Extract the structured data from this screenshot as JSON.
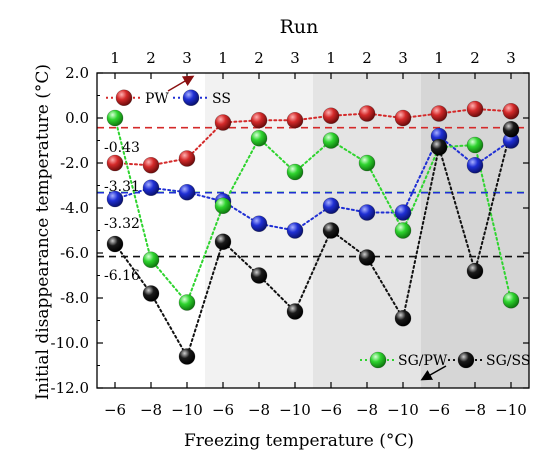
{
  "chart_data": {
    "type": "scatter",
    "title": "",
    "top_axis_label": "Run",
    "xlabel": "Freezing temperature (°C)",
    "ylabel": "Initial disappearance temperature (°C)",
    "ylim": [
      -12,
      2
    ],
    "yticks": [
      "2.0",
      "0.0",
      "-2.0",
      "-4.0",
      "-6.0",
      "-8.0",
      "-10.0",
      "-12.0"
    ],
    "yticks_values": [
      2,
      0,
      -2,
      -4,
      -6,
      -8,
      -10,
      -12
    ],
    "x_tick_labels": [
      "−6",
      "−8",
      "−10",
      "−6",
      "−8",
      "−10",
      "−6",
      "−8",
      "−10",
      "−6",
      "−8",
      "−10"
    ],
    "run_labels": [
      "1",
      "2",
      "3",
      "1",
      "2",
      "3",
      "1",
      "2",
      "3",
      "1",
      "2",
      "3"
    ],
    "grid": false,
    "legend_top": [
      {
        "name": "PW",
        "color": "#d42a2a"
      },
      {
        "name": "SS",
        "color": "#1f2fd4"
      }
    ],
    "legend_bottom": [
      {
        "name": "SG/PW",
        "color": "#2fd42f"
      },
      {
        "name": "SG/SS",
        "color": "#111111"
      }
    ],
    "series": [
      {
        "name": "PW",
        "color": "#d42a2a",
        "values": [
          -2.0,
          -2.1,
          -1.8,
          -0.2,
          -0.1,
          -0.1,
          0.1,
          0.2,
          0.0,
          0.2,
          0.4,
          0.3
        ]
      },
      {
        "name": "SS",
        "color": "#1f2fd4",
        "values": [
          -3.6,
          -3.1,
          -3.3,
          -3.7,
          -4.7,
          -5.0,
          -3.9,
          -4.2,
          -4.2,
          -0.8,
          -2.1,
          -1.0
        ]
      },
      {
        "name": "SG/PW",
        "color": "#2fd42f",
        "values": [
          0.0,
          -6.3,
          -8.2,
          -3.9,
          -0.9,
          -2.4,
          -1.0,
          -2.0,
          -5.0,
          -1.3,
          -1.2,
          -8.1
        ]
      },
      {
        "name": "SG/SS",
        "color": "#111111",
        "values": [
          -5.6,
          -7.8,
          -10.6,
          -5.5,
          -7.0,
          -8.6,
          -5.0,
          -6.2,
          -8.9,
          -1.3,
          -6.8,
          -0.5
        ]
      }
    ],
    "legend_extra_points": [
      {
        "series": "PW",
        "value": 0.9
      },
      {
        "series": "SS",
        "value": 0.9
      }
    ],
    "reference_lines": [
      {
        "value": -0.43,
        "label": "-0.43",
        "color": "#d42a2a"
      },
      {
        "value": -3.31,
        "label": "-3.31",
        "color": "#2fd42f"
      },
      {
        "value": -3.32,
        "label": "-3.32",
        "color": "#1f2fd4"
      },
      {
        "value": -6.16,
        "label": "-6.16",
        "color": "#111111"
      }
    ],
    "shaded_groups": [
      "#ffffff",
      "#f2f2f2",
      "#e4e4e4",
      "#d6d6d6"
    ]
  }
}
